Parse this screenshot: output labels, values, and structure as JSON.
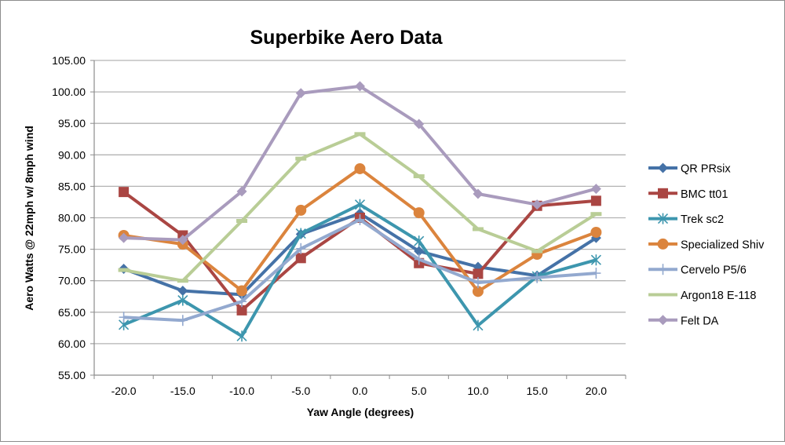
{
  "chart_data": {
    "type": "line",
    "title": "Superbike Aero Data",
    "xlabel": "Yaw Angle (degrees)",
    "ylabel": "Aero Watts @ 22mph w/ 8mph wind",
    "categories": [
      "-20.0",
      "-15.0",
      "-10.0",
      "-5.0",
      "0.0",
      "5.0",
      "10.0",
      "15.0",
      "20.0"
    ],
    "ylim": [
      55,
      105
    ],
    "yticks": [
      "55.00",
      "60.00",
      "65.00",
      "70.00",
      "75.00",
      "80.00",
      "85.00",
      "90.00",
      "95.00",
      "100.00",
      "105.00"
    ],
    "ytick_values": [
      55,
      60,
      65,
      70,
      75,
      80,
      85,
      90,
      95,
      100,
      105
    ],
    "grid": true,
    "legend_position": "right",
    "series": [
      {
        "name": "QR PRsix",
        "color": "#4572a7",
        "marker": "diamond",
        "values": [
          71.9,
          68.4,
          67.8,
          77.4,
          80.7,
          74.7,
          72.2,
          70.8,
          76.8
        ]
      },
      {
        "name": "BMC tt01",
        "color": "#aa4643",
        "marker": "square",
        "values": [
          84.1,
          77.2,
          65.3,
          73.6,
          80.0,
          72.8,
          71.1,
          81.9,
          82.7
        ]
      },
      {
        "name": "Trek sc2",
        "color": "#3d96ae",
        "marker": "star",
        "values": [
          63.0,
          66.9,
          61.2,
          77.5,
          82.1,
          76.3,
          62.9,
          70.7,
          73.3
        ]
      },
      {
        "name": "Specialized Shiv",
        "color": "#db843d",
        "marker": "circle",
        "values": [
          77.2,
          75.8,
          68.4,
          81.2,
          87.8,
          80.8,
          68.3,
          74.2,
          77.7
        ]
      },
      {
        "name": "Cervelo P5/6",
        "color": "#93a9cf",
        "marker": "plus",
        "values": [
          64.2,
          63.7,
          66.7,
          75.1,
          79.7,
          73.4,
          69.7,
          70.5,
          71.2
        ]
      },
      {
        "name": "Argon18 E-118",
        "color": "#b9cd96",
        "marker": "dash",
        "values": [
          71.7,
          70.0,
          79.5,
          89.4,
          93.3,
          86.6,
          78.2,
          74.7,
          80.6
        ]
      },
      {
        "name": "Felt DA",
        "color": "#a99bbd",
        "marker": "diamond",
        "values": [
          76.8,
          76.5,
          84.2,
          99.8,
          100.9,
          94.9,
          83.8,
          82.1,
          84.6
        ]
      }
    ]
  }
}
